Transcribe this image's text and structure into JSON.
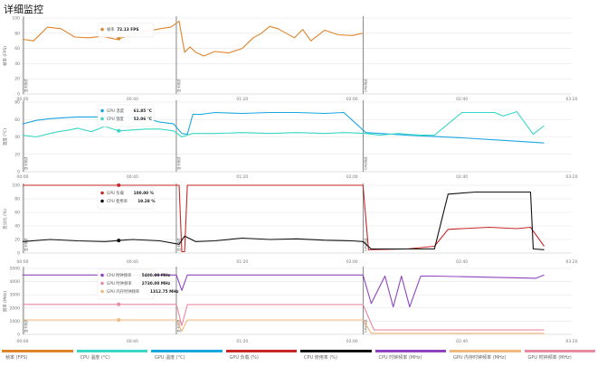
{
  "page_title": "详细监控",
  "colors": {
    "fps": "#e0842a",
    "cpu_temp": "#3ad6c6",
    "gpu_temp": "#1aa6df",
    "gpu_util": "#c62828",
    "cpu_util": "#111111",
    "cpu_freq": "#8e44c0",
    "gpu_mem_clock": "#f0b87a",
    "gpu_clock": "#e88aa0",
    "marker": "#555555"
  },
  "x_ticks": [
    "00:00",
    "00:40",
    "01:20",
    "02:00",
    "02:40",
    "03:20"
  ],
  "markers": [
    "显卡测试",
    "显卡测试",
    "CPU测试"
  ],
  "panels": [
    {
      "ylabel": "帧率 (FPS)",
      "y_ticks": [
        "100",
        "80",
        "60",
        "40",
        "20",
        "0"
      ],
      "tooltip": [
        {
          "label": "帧率",
          "value": "72.13 FPS",
          "color_key": "fps"
        }
      ]
    },
    {
      "ylabel": "温度 (°C)",
      "y_ticks": [
        "80",
        "60",
        "40",
        "20",
        "0"
      ],
      "tooltip": [
        {
          "label": "GPU 温度",
          "value": "61.85 °C",
          "color_key": "gpu_temp"
        },
        {
          "label": "CPU 温度",
          "value": "52.06 °C",
          "color_key": "cpu_temp"
        }
      ]
    },
    {
      "ylabel": "百分比 (%)",
      "y_ticks": [
        "100",
        "80",
        "60",
        "40",
        "20",
        "0"
      ],
      "tooltip": [
        {
          "label": "GPU 负载",
          "value": "100.00 %",
          "color_key": "gpu_util"
        },
        {
          "label": "CPU 使用率",
          "value": "19.28 %",
          "color_key": "cpu_util"
        }
      ]
    },
    {
      "ylabel": "频率 (MHz)",
      "y_ticks": [
        "5000",
        "4000",
        "3000",
        "2000",
        "1000",
        "0"
      ],
      "tooltip": [
        {
          "label": "CPU 时钟频率",
          "value": "5400.00 MHz",
          "color_key": "cpu_freq"
        },
        {
          "label": "GPU 时钟频率",
          "value": "2730.00 MHz",
          "color_key": "gpu_clock"
        },
        {
          "label": "GPU 内存时钟频率",
          "value": "1312.75 MHz",
          "color_key": "gpu_mem_clock"
        }
      ]
    }
  ],
  "legend": [
    {
      "label": "帧率 (FPS)",
      "color_key": "fps"
    },
    {
      "label": "CPU 温度 (°C)",
      "color_key": "cpu_temp"
    },
    {
      "label": "GPU 温度 (°C)",
      "color_key": "gpu_temp"
    },
    {
      "label": "GPU 负载 (%)",
      "color_key": "gpu_util"
    },
    {
      "label": "CPU 使用率 (%)",
      "color_key": "cpu_util"
    },
    {
      "label": "CPU 时钟频率 (MHz)",
      "color_key": "cpu_freq"
    },
    {
      "label": "GPU 内存时钟频率 (MHz)",
      "color_key": "gpu_mem_clock"
    },
    {
      "label": "GPU 时钟频率 (MHz)",
      "color_key": "gpu_clock"
    }
  ],
  "chart_data": [
    {
      "type": "line",
      "ylabel": "帧率 (FPS)",
      "x_unit": "minutes",
      "ylim": [
        0,
        100
      ],
      "series": [
        {
          "name": "帧率",
          "color_key": "fps",
          "x": [
            0,
            4,
            9,
            14,
            19,
            24,
            29,
            34,
            38,
            42,
            46,
            50,
            54,
            57,
            59,
            61,
            63,
            66,
            70,
            75,
            80,
            84,
            87,
            90,
            93,
            96,
            99,
            102,
            105,
            110,
            115,
            120,
            124
          ],
          "y": [
            72,
            70,
            88,
            86,
            75,
            74,
            76,
            72,
            76,
            82,
            83,
            86,
            88,
            96,
            55,
            62,
            55,
            50,
            56,
            54,
            60,
            74,
            80,
            89,
            86,
            80,
            74,
            85,
            70,
            84,
            78,
            77,
            80
          ]
        }
      ]
    },
    {
      "type": "line",
      "ylabel": "温度 (°C)",
      "x_unit": "minutes",
      "ylim": [
        0,
        80
      ],
      "series": [
        {
          "name": "GPU 温度",
          "color_key": "gpu_temp",
          "x": [
            0,
            5,
            10,
            15,
            20,
            25,
            30,
            35,
            40,
            44,
            50,
            55,
            58,
            60,
            62,
            65,
            70,
            80,
            90,
            100,
            110,
            117,
            125,
            140,
            160,
            175,
            190
          ],
          "y": [
            55,
            59,
            61,
            62,
            63,
            63,
            63,
            62,
            62,
            62,
            57,
            55,
            44,
            43,
            66,
            66,
            68,
            67,
            68,
            68,
            67,
            68,
            45,
            42,
            39,
            36,
            33
          ]
        },
        {
          "name": "CPU 温度",
          "color_key": "cpu_temp",
          "x": [
            0,
            5,
            10,
            13,
            17,
            20,
            25,
            30,
            35,
            40,
            45,
            50,
            55,
            58,
            62,
            70,
            80,
            90,
            100,
            110,
            117,
            125,
            130,
            137,
            140,
            145,
            150,
            160,
            168,
            172,
            175,
            180,
            186,
            190
          ],
          "y": [
            42,
            40,
            44,
            46,
            48,
            50,
            46,
            52,
            47,
            48,
            49,
            49,
            47,
            40,
            44,
            44,
            45,
            44,
            45,
            44,
            45,
            44,
            42,
            44,
            43,
            42,
            42,
            68,
            68,
            68,
            64,
            69,
            43,
            53
          ]
        }
      ]
    },
    {
      "type": "line",
      "ylabel": "百分比 (%)",
      "x_unit": "minutes",
      "ylim": [
        0,
        100
      ],
      "series": [
        {
          "name": "GPU 负载",
          "color_key": "gpu_util",
          "x": [
            0,
            56,
            57,
            58,
            59,
            60,
            62,
            124,
            126,
            140,
            150,
            155,
            160,
            170,
            180,
            185,
            190
          ],
          "y": [
            100,
            100,
            100,
            2,
            2,
            100,
            100,
            100,
            5,
            6,
            10,
            35,
            36,
            38,
            36,
            38,
            10
          ]
        },
        {
          "name": "CPU 使用率",
          "color_key": "cpu_util",
          "x": [
            0,
            10,
            20,
            30,
            40,
            50,
            57,
            59,
            63,
            70,
            80,
            90,
            100,
            110,
            120,
            124,
            127,
            140,
            150,
            155,
            165,
            175,
            185,
            186,
            190
          ],
          "y": [
            17,
            20,
            18,
            17,
            20,
            18,
            13,
            25,
            17,
            18,
            22,
            20,
            21,
            19,
            18,
            17,
            6,
            6,
            6,
            87,
            90,
            90,
            90,
            6,
            5
          ]
        }
      ]
    },
    {
      "type": "line",
      "ylabel": "频率 (MHz)",
      "x_unit": "minutes",
      "ylim": [
        0,
        6000
      ],
      "series": [
        {
          "name": "CPU 时钟频率",
          "color_key": "cpu_freq",
          "x": [
            0,
            56,
            58,
            60,
            124,
            127,
            132,
            135,
            138,
            141,
            145,
            150,
            187,
            190
          ],
          "y": [
            5400,
            5400,
            4000,
            5400,
            5400,
            2800,
            5300,
            2500,
            5300,
            2500,
            5300,
            5300,
            5100,
            5400
          ]
        },
        {
          "name": "GPU 时钟频率",
          "color_key": "gpu_clock",
          "x": [
            0,
            56,
            58,
            60,
            124,
            128,
            140,
            190
          ],
          "y": [
            2730,
            2730,
            800,
            2700,
            2700,
            400,
            400,
            400
          ]
        },
        {
          "name": "GPU 内存时钟频率",
          "color_key": "gpu_mem_clock",
          "x": [
            0,
            56,
            58,
            60,
            124,
            127,
            190
          ],
          "y": [
            1312,
            1312,
            300,
            1312,
            1312,
            100,
            100
          ]
        }
      ]
    }
  ]
}
